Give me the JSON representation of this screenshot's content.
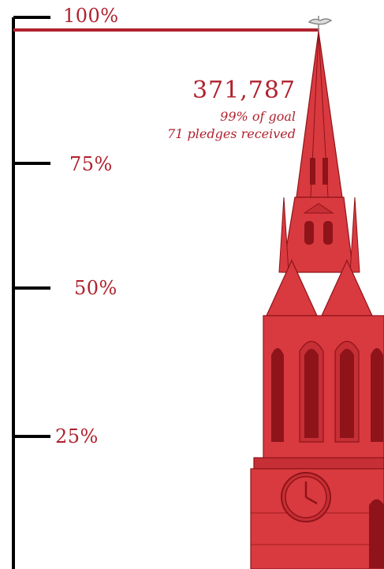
{
  "chart_data": {
    "type": "bar",
    "categories": [
      ""
    ],
    "values": [
      99
    ],
    "ylim": [
      0,
      100
    ],
    "ticks": [
      "100%",
      "75%",
      "50%",
      "25%"
    ],
    "annotations": {
      "amount": "371,787",
      "percent_of_goal": "99% of goal",
      "pledges": "71 pledges received"
    }
  },
  "colors": {
    "accent": "#b0222e",
    "steeple": "#d93a3f",
    "steeple_dark": "#8e1419",
    "axis": "#000000"
  }
}
